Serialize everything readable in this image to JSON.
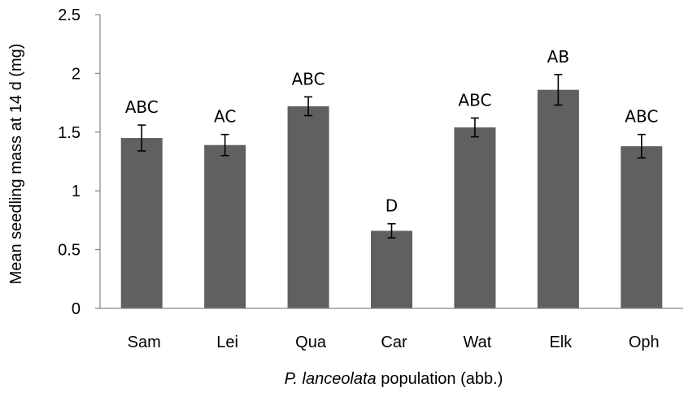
{
  "chart_data": {
    "type": "bar",
    "categories": [
      "Sam",
      "Lei",
      "Qua",
      "Car",
      "Wat",
      "Elk",
      "Oph"
    ],
    "values": [
      1.45,
      1.39,
      1.72,
      0.66,
      1.54,
      1.86,
      1.38
    ],
    "errors": [
      0.11,
      0.09,
      0.08,
      0.06,
      0.08,
      0.13,
      0.1
    ],
    "significance_labels": [
      "ABC",
      "AC",
      "ABC",
      "D",
      "ABC",
      "AB",
      "ABC"
    ],
    "ylabel": "Mean seedling mass at 14 d (mg)",
    "xlabel_italic": "P. lanceolata",
    "xlabel_rest": " population (abb.)",
    "ylim": [
      0,
      2.5
    ],
    "yticks": [
      0,
      0.5,
      1,
      1.5,
      2,
      2.5
    ],
    "ytick_labels": [
      "0",
      "0.5",
      "1",
      "1.5",
      "2",
      "2.5"
    ],
    "bar_color": "#606060",
    "error_bar_color": "#000000",
    "grid": false,
    "legend": "none"
  }
}
